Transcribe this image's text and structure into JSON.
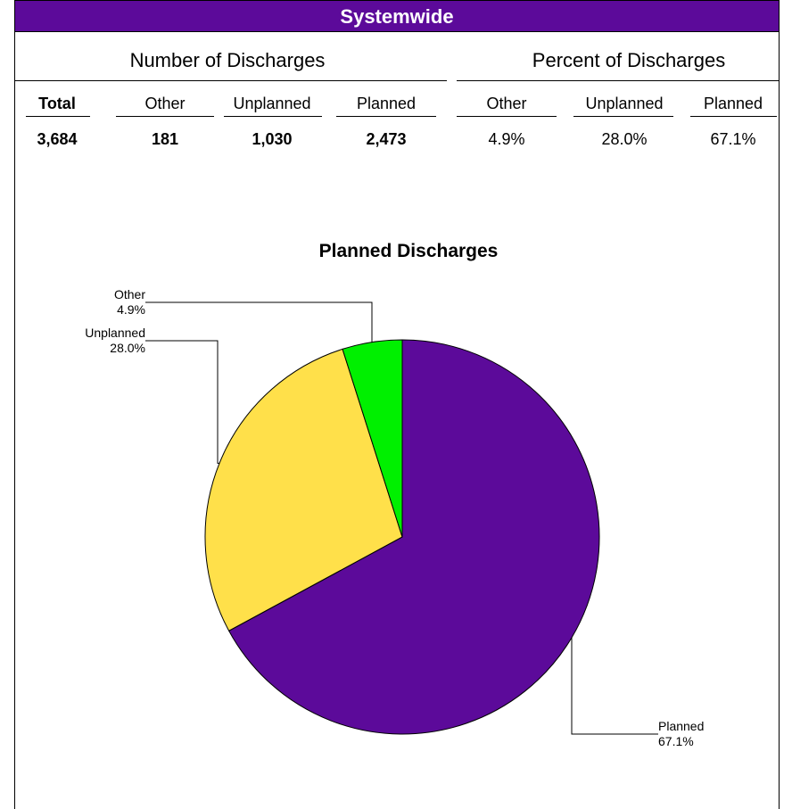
{
  "banner": {
    "title": "Systemwide"
  },
  "table": {
    "number_header": "Number of Discharges",
    "percent_header": "Percent of Discharges",
    "number_columns": [
      {
        "label": "Total",
        "value": "3,684"
      },
      {
        "label": "Other",
        "value": "181"
      },
      {
        "label": "Unplanned",
        "value": "1,030"
      },
      {
        "label": "Planned",
        "value": "2,473"
      }
    ],
    "percent_columns": [
      {
        "label": "Other",
        "value": "4.9%"
      },
      {
        "label": "Unplanned",
        "value": "28.0%"
      },
      {
        "label": "Planned",
        "value": "67.1%"
      }
    ]
  },
  "chart_data": {
    "type": "pie",
    "title": "Planned Discharges",
    "slices": [
      {
        "name": "Planned",
        "value": 67.1,
        "label": "67.1%",
        "color": "#5c0a9a"
      },
      {
        "name": "Unplanned",
        "value": 28.0,
        "label": "28.0%",
        "color": "#ffe04a"
      },
      {
        "name": "Other",
        "value": 4.9,
        "label": "4.9%",
        "color": "#00f000"
      }
    ]
  }
}
